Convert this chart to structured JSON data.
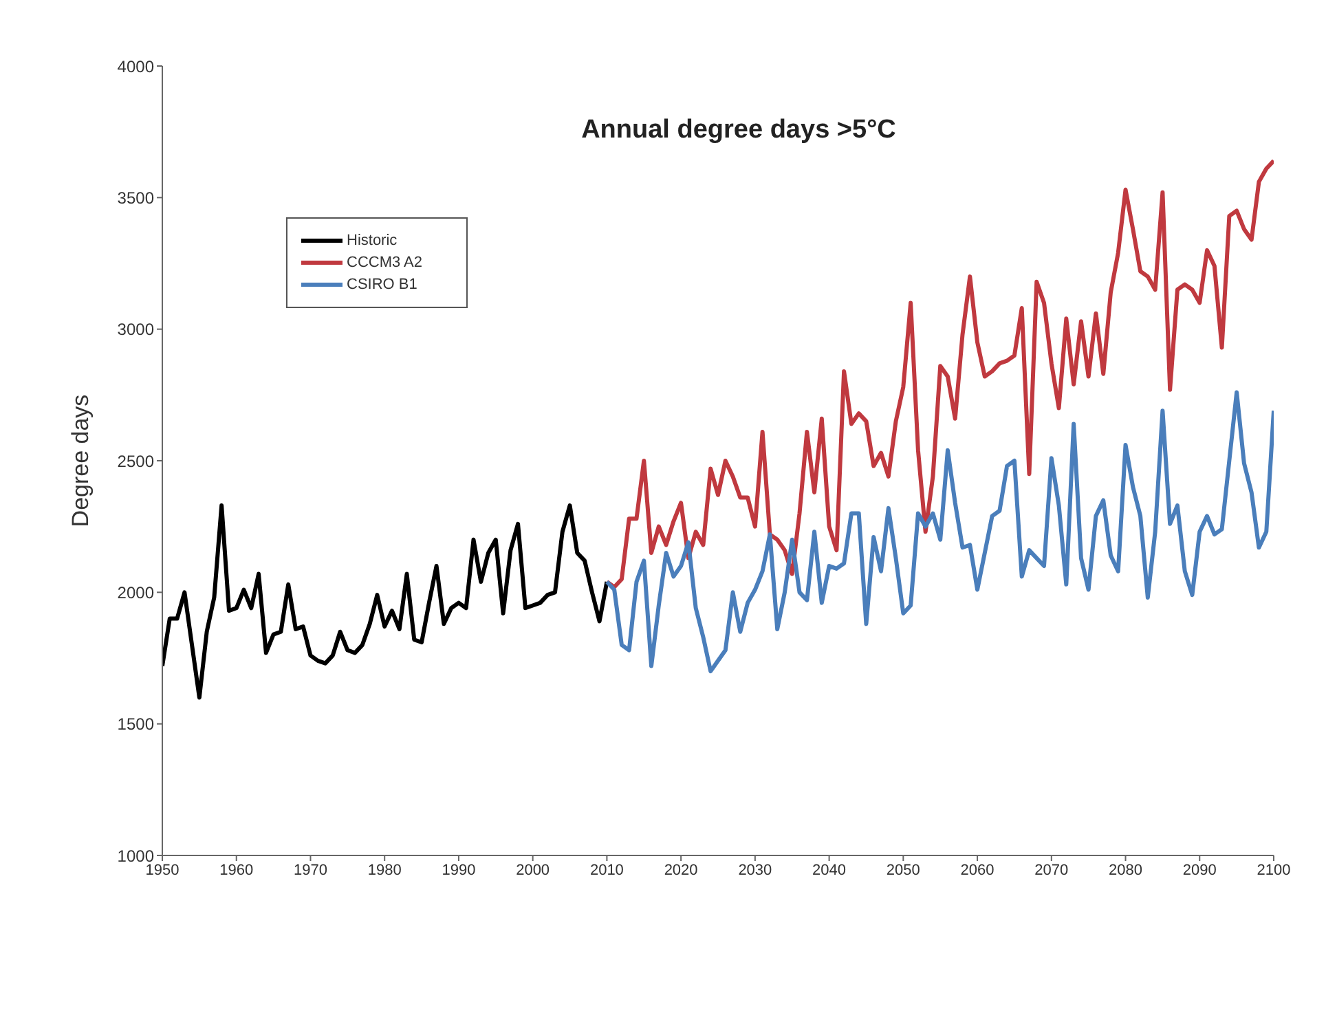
{
  "chart_data": {
    "type": "line",
    "title": "Annual degree days >5°C",
    "ylabel": "Degree days",
    "xlim": [
      1950,
      2100
    ],
    "xticks": [
      1950,
      1960,
      1970,
      1980,
      1990,
      2000,
      2010,
      2020,
      2030,
      2040,
      2050,
      2060,
      2070,
      2080,
      2090,
      2100
    ],
    "ylim": [
      1000,
      4000
    ],
    "yticks": [
      1000,
      1500,
      2000,
      2500,
      3000,
      3500,
      4000
    ],
    "grid": false,
    "legend": "top left",
    "marker": "none",
    "line_style": "solid",
    "series": [
      {
        "name": "Historic",
        "color": "#000000",
        "x": [
          1950,
          1951,
          1952,
          1953,
          1954,
          1955,
          1956,
          1957,
          1958,
          1959,
          1960,
          1961,
          1962,
          1963,
          1964,
          1965,
          1966,
          1967,
          1968,
          1969,
          1970,
          1971,
          1972,
          1973,
          1974,
          1975,
          1976,
          1977,
          1978,
          1979,
          1980,
          1981,
          1982,
          1983,
          1984,
          1985,
          1986,
          1987,
          1988,
          1989,
          1990,
          1991,
          1992,
          1993,
          1994,
          1995,
          1996,
          1997,
          1998,
          1999,
          2000,
          2001,
          2002,
          2003,
          2004,
          2005,
          2006,
          2007,
          2008,
          2009,
          2010
        ],
        "values": [
          1720,
          1900,
          1900,
          2000,
          1800,
          1600,
          1850,
          1980,
          2330,
          1930,
          1940,
          2010,
          1940,
          2070,
          1770,
          1840,
          1850,
          2030,
          1860,
          1870,
          1760,
          1740,
          1730,
          1760,
          1850,
          1780,
          1770,
          1800,
          1880,
          1990,
          1870,
          1930,
          1860,
          2070,
          1820,
          1810,
          1960,
          2100,
          1880,
          1940,
          1960,
          1940,
          2200,
          2040,
          2150,
          2200,
          1920,
          2160,
          2260,
          1940,
          1950,
          1960,
          1990,
          2000,
          2230,
          2330,
          2150,
          2120,
          2000,
          1890,
          2040
        ]
      },
      {
        "name": "CCCM3 A2",
        "color": "#c0393f",
        "x": [
          2010,
          2011,
          2012,
          2013,
          2014,
          2015,
          2016,
          2017,
          2018,
          2019,
          2020,
          2021,
          2022,
          2023,
          2024,
          2025,
          2026,
          2027,
          2028,
          2029,
          2030,
          2031,
          2032,
          2033,
          2034,
          2035,
          2036,
          2037,
          2038,
          2039,
          2040,
          2041,
          2042,
          2043,
          2044,
          2045,
          2046,
          2047,
          2048,
          2049,
          2050,
          2051,
          2052,
          2053,
          2054,
          2055,
          2056,
          2057,
          2058,
          2059,
          2060,
          2061,
          2062,
          2063,
          2064,
          2065,
          2066,
          2067,
          2068,
          2069,
          2070,
          2071,
          2072,
          2073,
          2074,
          2075,
          2076,
          2077,
          2078,
          2079,
          2080,
          2081,
          2082,
          2083,
          2084,
          2085,
          2086,
          2087,
          2088,
          2089,
          2090,
          2091,
          2092,
          2093,
          2094,
          2095,
          2096,
          2097,
          2098,
          2099,
          2100
        ],
        "values": [
          2040,
          2020,
          2050,
          2280,
          2280,
          2500,
          2150,
          2250,
          2180,
          2270,
          2340,
          2130,
          2230,
          2180,
          2470,
          2370,
          2500,
          2440,
          2360,
          2360,
          2250,
          2610,
          2220,
          2200,
          2160,
          2070,
          2300,
          2610,
          2380,
          2660,
          2250,
          2160,
          2840,
          2640,
          2680,
          2650,
          2480,
          2530,
          2440,
          2650,
          2780,
          3100,
          2540,
          2230,
          2440,
          2860,
          2820,
          2660,
          2980,
          3200,
          2950,
          2820,
          2840,
          2870,
          2880,
          2900,
          3080,
          2450,
          3180,
          3100,
          2870,
          2700,
          3040,
          2790,
          3030,
          2820,
          3060,
          2830,
          3140,
          3290,
          3530,
          3380,
          3220,
          3200,
          3150,
          3520,
          2770,
          3150,
          3170,
          3150,
          3100,
          3300,
          3240,
          2930,
          3430,
          3450,
          3380,
          3340,
          3560,
          3610,
          3640
        ]
      },
      {
        "name": "CSIRO B1",
        "color": "#4a7ebb",
        "x": [
          2010,
          2011,
          2012,
          2013,
          2014,
          2015,
          2016,
          2017,
          2018,
          2019,
          2020,
          2021,
          2022,
          2023,
          2024,
          2025,
          2026,
          2027,
          2028,
          2029,
          2030,
          2031,
          2032,
          2033,
          2034,
          2035,
          2036,
          2037,
          2038,
          2039,
          2040,
          2041,
          2042,
          2043,
          2044,
          2045,
          2046,
          2047,
          2048,
          2049,
          2050,
          2051,
          2052,
          2053,
          2054,
          2055,
          2056,
          2057,
          2058,
          2059,
          2060,
          2061,
          2062,
          2063,
          2064,
          2065,
          2066,
          2067,
          2068,
          2069,
          2070,
          2071,
          2072,
          2073,
          2074,
          2075,
          2076,
          2077,
          2078,
          2079,
          2080,
          2081,
          2082,
          2083,
          2084,
          2085,
          2086,
          2087,
          2088,
          2089,
          2090,
          2091,
          2092,
          2093,
          2094,
          2095,
          2096,
          2097,
          2098,
          2099,
          2100
        ],
        "values": [
          2040,
          2010,
          1800,
          1780,
          2040,
          2120,
          1720,
          1950,
          2150,
          2060,
          2100,
          2190,
          1940,
          1830,
          1700,
          1740,
          1780,
          2000,
          1850,
          1960,
          2010,
          2080,
          2220,
          1860,
          2000,
          2200,
          2000,
          1970,
          2230,
          1960,
          2100,
          2090,
          2110,
          2300,
          2300,
          1880,
          2210,
          2080,
          2320,
          2130,
          1920,
          1950,
          2300,
          2250,
          2300,
          2200,
          2540,
          2340,
          2170,
          2180,
          2010,
          2150,
          2290,
          2310,
          2480,
          2500,
          2060,
          2160,
          2130,
          2100,
          2510,
          2330,
          2030,
          2640,
          2130,
          2010,
          2290,
          2350,
          2140,
          2080,
          2560,
          2400,
          2290,
          1980,
          2230,
          2690,
          2260,
          2330,
          2080,
          1990,
          2230,
          2290,
          2220,
          2240,
          2500,
          2760,
          2490,
          2380,
          2170,
          2230,
          2690
        ]
      }
    ]
  }
}
